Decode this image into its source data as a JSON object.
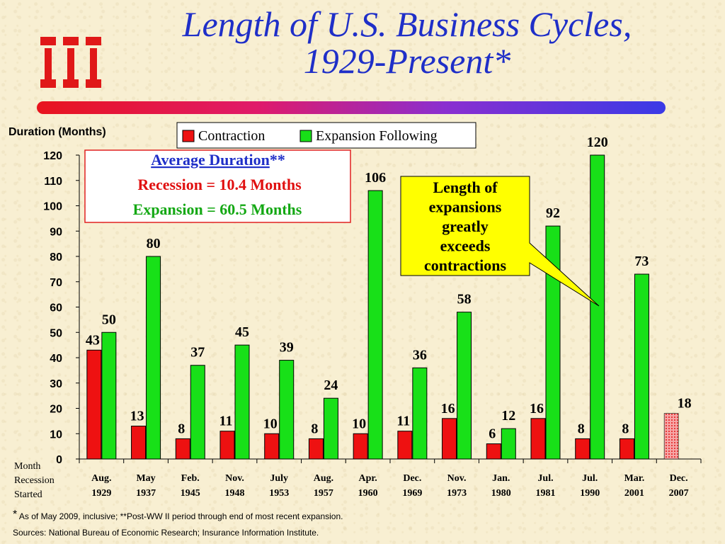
{
  "header": {
    "title_line1": "Length of U.S. Business Cycles,",
    "title_line2": "1929-Present*"
  },
  "colors": {
    "contraction": "#ee1111",
    "expansion": "#18e018",
    "title": "#1f2fc8"
  },
  "chart_data": {
    "type": "bar",
    "ylabel": "Duration (Months)",
    "ylim": [
      0,
      120
    ],
    "yticks": [
      0,
      10,
      20,
      30,
      40,
      50,
      60,
      70,
      80,
      90,
      100,
      110,
      120
    ],
    "grid": false,
    "legend_position": "top",
    "xlabel_lines": [
      "Month",
      "Recession",
      "Started"
    ],
    "categories": [
      [
        "Aug.",
        "1929"
      ],
      [
        "May",
        "1937"
      ],
      [
        "Feb.",
        "1945"
      ],
      [
        "Nov.",
        "1948"
      ],
      [
        "July",
        "1953"
      ],
      [
        "Aug.",
        "1957"
      ],
      [
        "Apr.",
        "1960"
      ],
      [
        "Dec.",
        "1969"
      ],
      [
        "Nov.",
        "1973"
      ],
      [
        "Jan.",
        "1980"
      ],
      [
        "Jul.",
        "1981"
      ],
      [
        "Jul.",
        "1990"
      ],
      [
        "Mar.",
        "2001"
      ],
      [
        "Dec.",
        "2007"
      ]
    ],
    "series": [
      {
        "name": "Contraction",
        "values": [
          43,
          13,
          8,
          11,
          10,
          8,
          10,
          11,
          16,
          6,
          16,
          8,
          8,
          18
        ]
      },
      {
        "name": "Expansion Following",
        "values": [
          50,
          80,
          37,
          45,
          39,
          24,
          106,
          36,
          58,
          12,
          92,
          120,
          73,
          null
        ]
      }
    ],
    "in_progress_bar": 13,
    "average_box": {
      "heading": "Average Duration",
      "heading_suffix": "**",
      "recession": "Recession = 10.4 Months",
      "expansion": "Expansion = 60.5 Months"
    },
    "callout": [
      "Length of",
      "expansions",
      "greatly",
      "exceeds",
      "contractions"
    ]
  },
  "footer": {
    "footnote_mark": "*",
    "footnote": "As of May 2009, inclusive;  **Post-WW II period through end of most recent expansion.",
    "sources": "Sources: National Bureau of Economic Research; Insurance Information Institute."
  }
}
